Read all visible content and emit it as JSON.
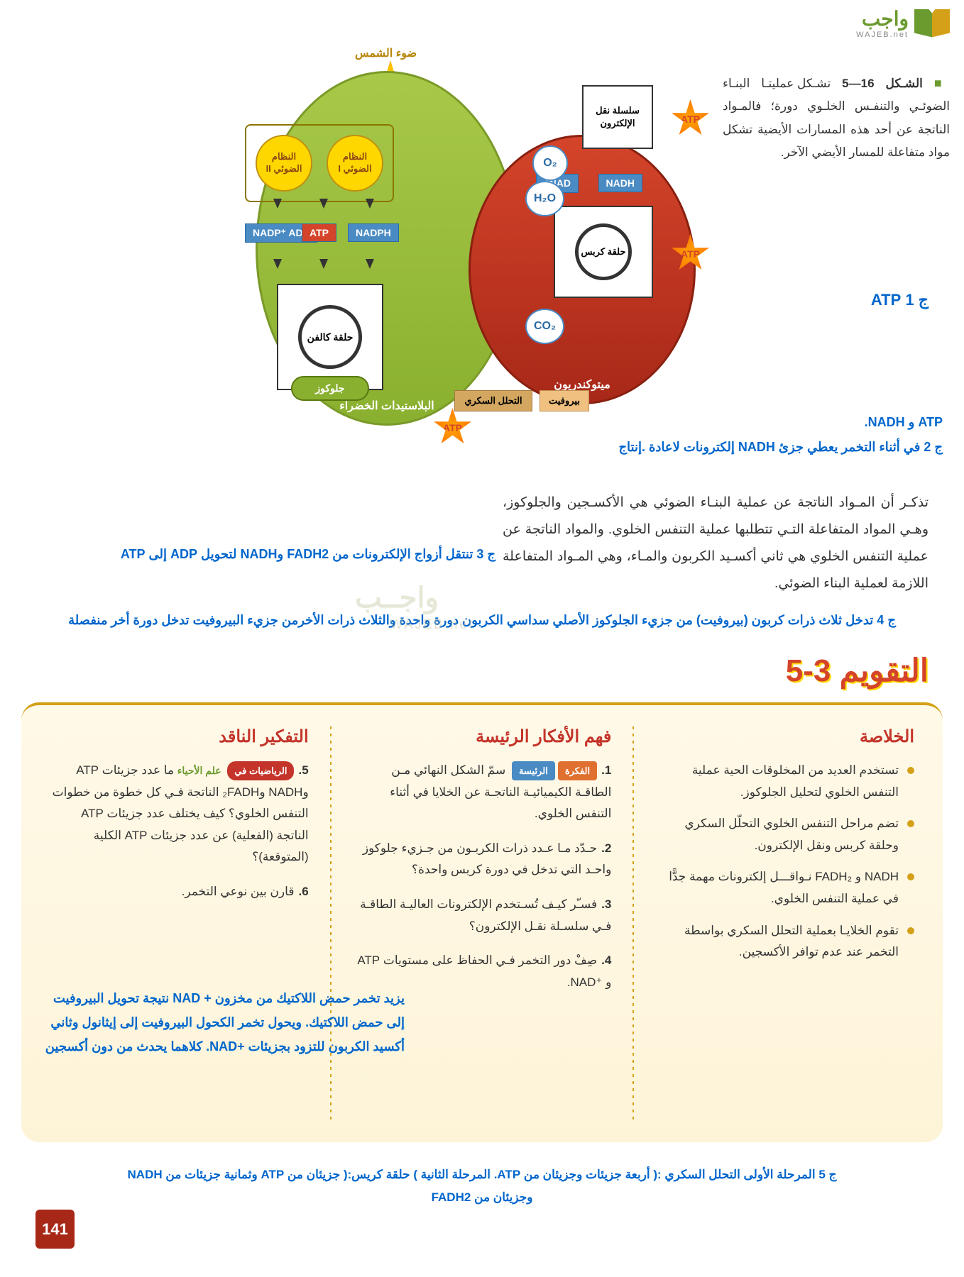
{
  "logo": {
    "ar": "واجب",
    "en": "WAJEB.net"
  },
  "diagram": {
    "sun": "ضوء الشمس",
    "ps1": "النظام الضوئي I",
    "ps2": "النظام الضوئي II",
    "calvin": "حلقة كالفن",
    "glucose": "جلوكوز",
    "chloroplast": "البلاستيدات الخضراء",
    "mitochondria": "ميتوكندريون",
    "etc": "سلسلة نقل الإلكترون",
    "krebs": "حلقة كربس",
    "glycolysis": "التحلل السكري",
    "pyruvate": "بيروفيت",
    "nadp": "NADP⁺ ADP",
    "atp": "ATP",
    "nadph": "NADPH",
    "nad": "NAD⁺",
    "nadh": "NADH",
    "o2": "O₂",
    "h2o": "H₂O",
    "co2": "CO₂"
  },
  "caption": {
    "marker": "■",
    "title": "الشـكل 16—5",
    "text": "تشـكل عمليتـا البنـاء الضوئـي والتنفـس الخلـوي دورة؛ فالمـواد الناتجة عن أحد هذه المسارات الأيضية تشكل مواد متفاعلة للمسار الأيضي الآخر."
  },
  "answers": {
    "j1": "ج 1  ATP",
    "j2a": "ATP و NADH.",
    "j2b": "ج 2 في أثناء التخمر يعطي جزئ NADH إلكترونات لاعادة .إنتاج",
    "j3": "ج 3 تنتقل أزواج الإلكترونات من FADH2 وNADH لتحويل ADP إلى ATP",
    "j4": "ج 4 تدخل ثلاث ذرات كربون (بيروفيت) من جزيء الجلوكوز الأصلي سداسي الكربون دورة واحدة والثلاث ذرات الأخرمن جزيء البيروفيت تدخل دورة أخر منفصلة",
    "a6": "يزيد تخمر حمض اللاكتيك من مخزون + NAD نتيجة تحويل البيروفيت إلى حمض اللاكتيك. ويحول تخمر الكحول البيروفيت إلى إيثانول وثاني أكسيد الكربون للتزود بجزيئات +NAD. كلاهما يحدث من دون أكسجين",
    "j5": "ج 5 المرحلة الأولى التحلل السكري :( أربعة جزيئات وجزيئان من ATP. المرحلة الثانية ) حلقة كريس:( جزيئان من ATP وثمانية جزيئات من NADH وجزيئان من FADH2"
  },
  "body": "تذكـر أن المـواد الناتجة عن عملية البنـاء الضوئي هي الأكسـجين والجلوكوز، وهـي المواد المتفاعلة التـي تتطلبها عملية التنفس الخلوي. والمواد الناتجة عن عملية التنفس الخلوي هي ثاني أكسـيد الكربون والمـاء، وهي المـواد المتفاعلة اللازمة لعملية البناء الضوئي.",
  "watermark": {
    "ar": "واجــب",
    "en": "WAJEB.net"
  },
  "assessment": {
    "title": "التقويم 3-5",
    "summary_title": "الخلاصة",
    "summary": [
      "تستخدم العديد من المخلوقات الحية عملية التنفس الخلوي لتحليل الجلوكوز.",
      "تضم مراحل التنفس الخلوي التحلّل السكري وحلقة كربس ونقل الإلكترون.",
      "NADH و FADH₂ نـواقـــل إلكترونات مهمة جدًّا في عملية التنفس الخلوي.",
      "تقوم الخلايـا بعملية التحلل السكري بواسطة التخمر عند عدم توافر الأكسجين."
    ],
    "understanding_title": "فهم الأفكار الرئيسة",
    "understanding": [
      {
        "n": "1.",
        "badges": true,
        "b1": "الفكرة",
        "b2": "الرئيسة",
        "text": "سمّ الشكل النهائي مـن الطاقـة الكيميائيـة الناتجـة عن الخلايا في أثناء التنفس الخلوي."
      },
      {
        "n": "2.",
        "text": "حـدّد مـا عـدد ذرات الكربـون من جـزيء جلوكوز واحـد التي تدخل في دورة كربس واحدة؟"
      },
      {
        "n": "3.",
        "text": "فسـّر كيـف تُسـتخدم الإلكترونات العاليـة الطاقـة فـي سلسـلة نقـل الإلكترون؟"
      },
      {
        "n": "4.",
        "text": "صِفْ دور التخمر فـي الحفاظ على مستويات ATP و ⁺NAD."
      }
    ],
    "critical_title": "التفكير الناقد",
    "critical": [
      {
        "n": "5.",
        "math": "الرياضيات في",
        "bio": "علم الأحياء",
        "text": "ما عدد جزيئات ATP وNADH و₂FADH الناتجة فـي كل خطوة من خطوات التنفس الخلوي؟ كيف يختلف عدد جزيئات ATP الناتجة (الفعلية) عن عدد جزيئات ATP الكلية (المتوقعة)؟"
      },
      {
        "n": "6.",
        "text": "قارن بين نوعي التخمر."
      }
    ]
  },
  "page": "141"
}
